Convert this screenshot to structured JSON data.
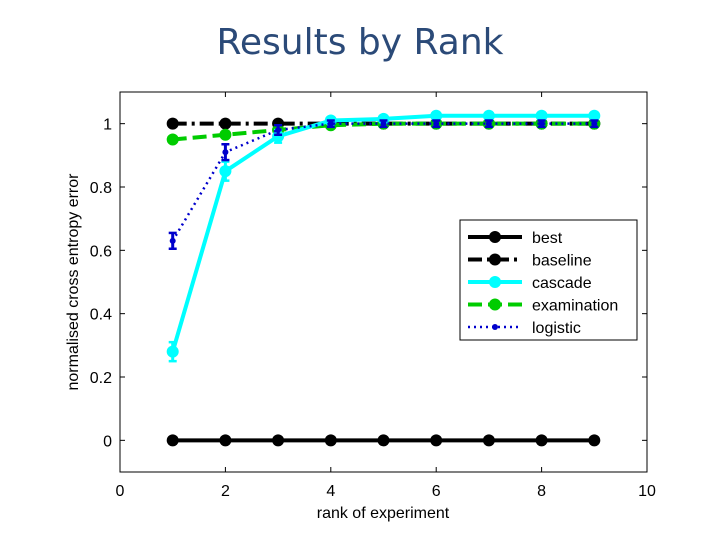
{
  "slide": {
    "title": "Results by Rank"
  },
  "chart_data": {
    "type": "line",
    "title": "",
    "xlabel": "rank of experiment",
    "ylabel": "normalised cross entropy error",
    "xlim": [
      0,
      10
    ],
    "ylim": [
      -0.1,
      1.1
    ],
    "xticks": [
      0,
      2,
      4,
      6,
      8,
      10
    ],
    "yticks": [
      0,
      0.2,
      0.4,
      0.6,
      0.8,
      1
    ],
    "grid": false,
    "legend_position": "center-right",
    "x": [
      1,
      2,
      3,
      4,
      5,
      6,
      7,
      8,
      9
    ],
    "series": [
      {
        "name": "best",
        "color": "#000000",
        "line_style": "solid",
        "marker": "circle",
        "values": [
          0,
          0,
          0,
          0,
          0,
          0,
          0,
          0,
          0
        ]
      },
      {
        "name": "baseline",
        "color": "#000000",
        "line_style": "dash-dot",
        "marker": "circle",
        "values": [
          1,
          1,
          1,
          1,
          1,
          1,
          1,
          1,
          1
        ]
      },
      {
        "name": "cascade",
        "color": "#00ffff",
        "line_style": "solid",
        "marker": "circle",
        "values": [
          0.28,
          0.85,
          0.96,
          1.01,
          1.015,
          1.025,
          1.025,
          1.025,
          1.025
        ],
        "error": [
          0.03,
          0.03,
          0.02,
          0.01,
          0.01,
          0.01,
          0.01,
          0.01,
          0.01
        ]
      },
      {
        "name": "examination",
        "color": "#00cc00",
        "line_style": "dashed",
        "marker": "circle",
        "values": [
          0.95,
          0.965,
          0.98,
          0.995,
          1,
          1,
          1,
          1,
          1
        ]
      },
      {
        "name": "logistic",
        "color": "#0000cc",
        "line_style": "dotted",
        "marker": "dot",
        "values": [
          0.63,
          0.91,
          0.98,
          1,
          1,
          1,
          1,
          1,
          1
        ],
        "error": [
          0.025,
          0.025,
          0.015,
          0.01,
          0.01,
          0.01,
          0.01,
          0.01,
          0.01
        ]
      }
    ]
  }
}
